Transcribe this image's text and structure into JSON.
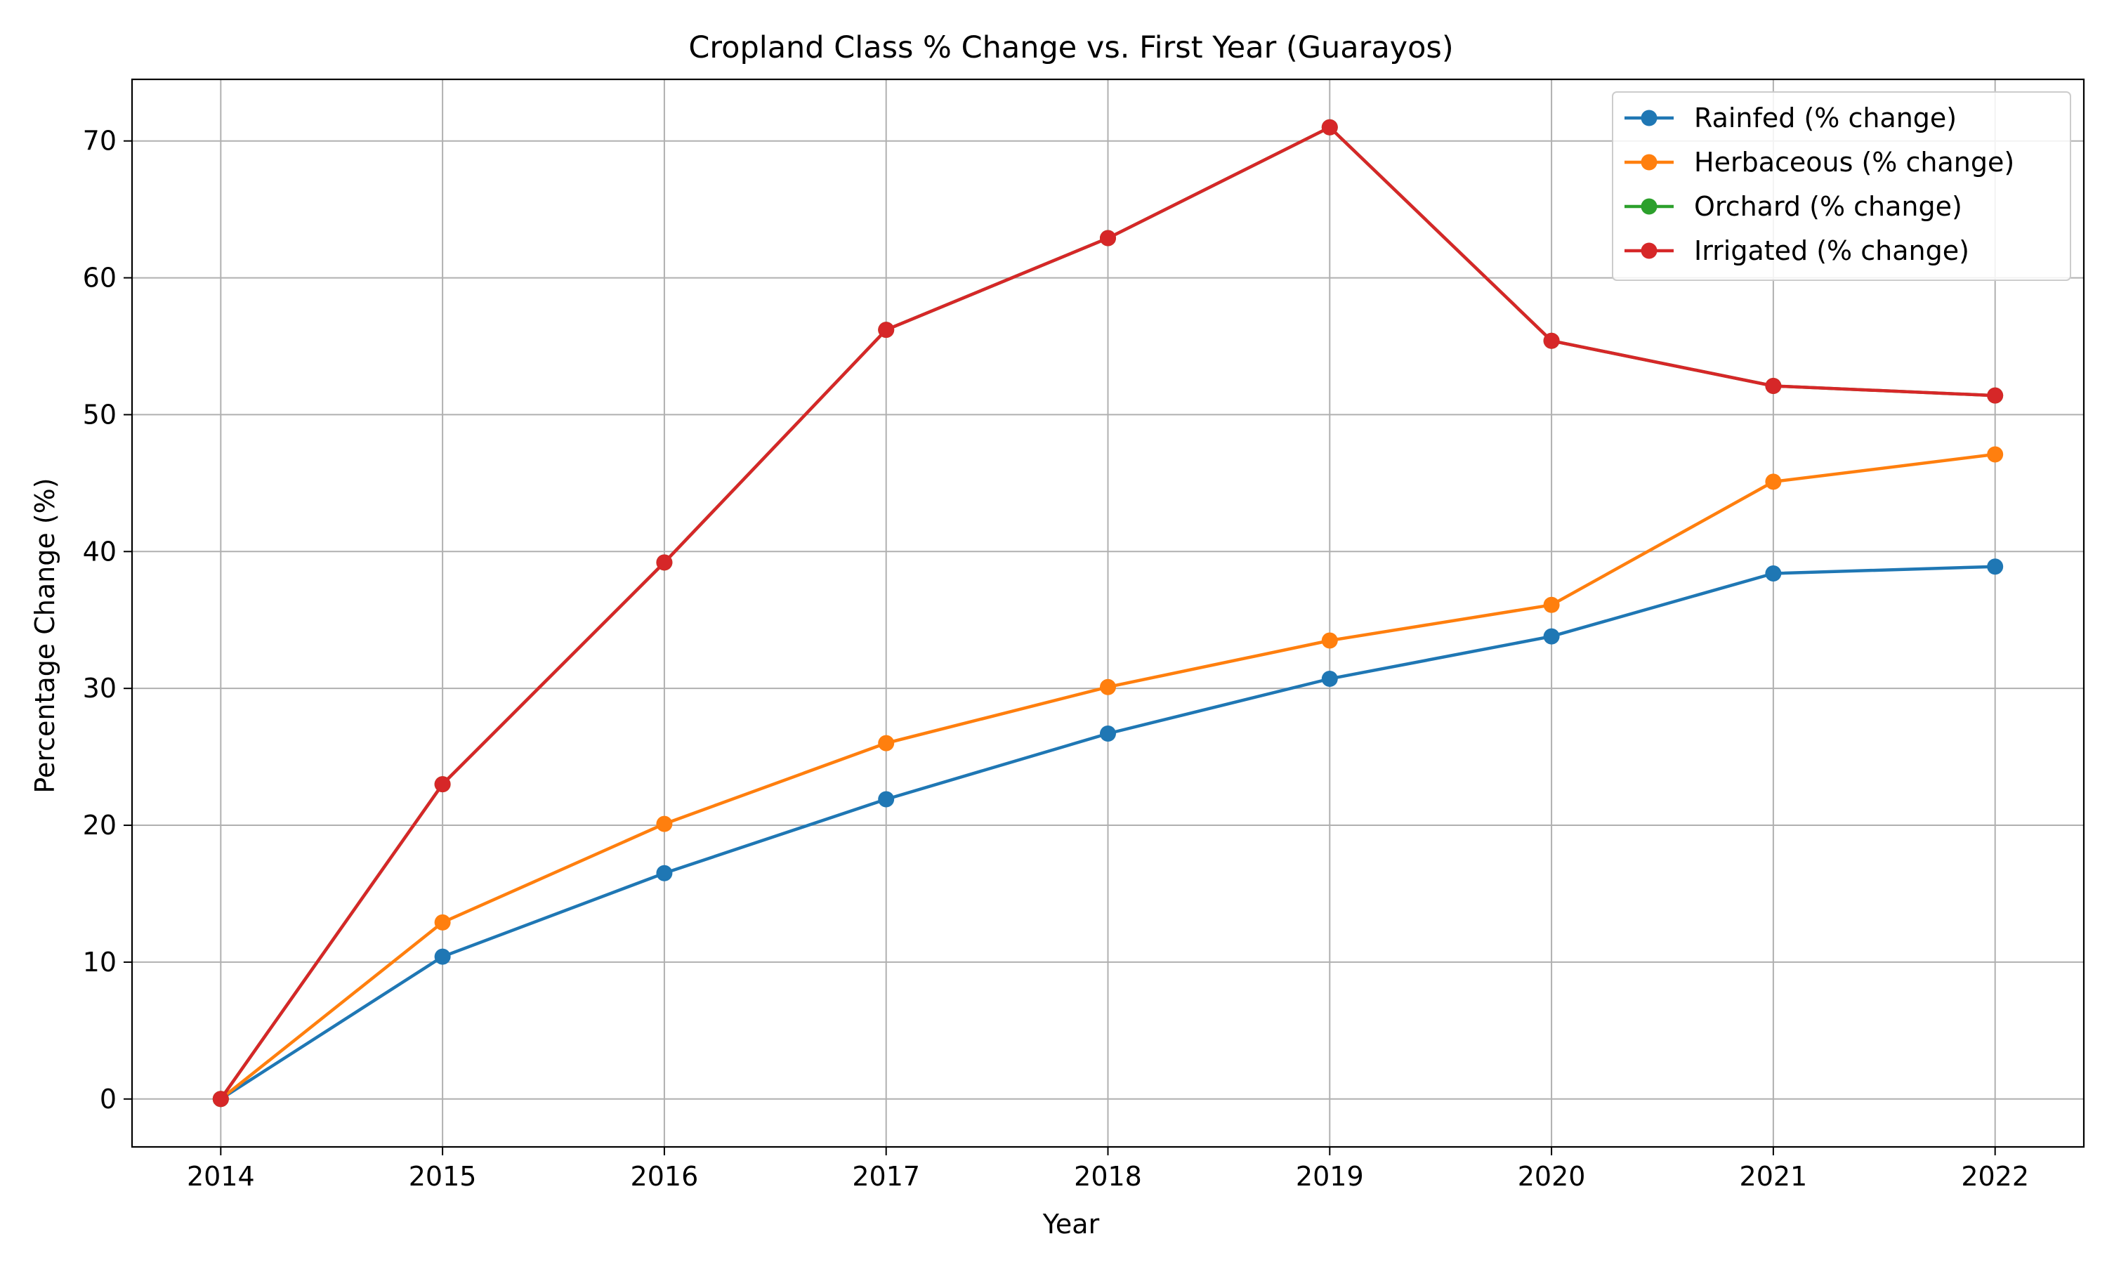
{
  "chart_data": {
    "type": "line",
    "title": "Cropland Class % Change vs. First Year (Guarayos)",
    "xlabel": "Year",
    "ylabel": "Percentage Change (%)",
    "x": [
      2014,
      2015,
      2016,
      2017,
      2018,
      2019,
      2020,
      2021,
      2022
    ],
    "xlim": [
      2013.6,
      2022.4
    ],
    "ylim": [
      -3.5,
      74.5
    ],
    "yticks": [
      0,
      10,
      20,
      30,
      40,
      50,
      60,
      70
    ],
    "grid": true,
    "legend_position": "top-right",
    "series": [
      {
        "name": "Rainfed (% change)",
        "color": "#1f77b4",
        "values": [
          0,
          10.4,
          16.5,
          21.9,
          26.7,
          30.7,
          33.8,
          38.4,
          38.9
        ]
      },
      {
        "name": "Herbaceous (% change)",
        "color": "#ff7f0e",
        "values": [
          0,
          12.9,
          20.1,
          26.0,
          30.1,
          33.5,
          36.1,
          45.1,
          47.1
        ]
      },
      {
        "name": "Orchard (% change)",
        "color": "#2ca02c",
        "values": [
          0,
          23.0,
          39.2,
          56.2,
          62.9,
          71.0,
          55.4,
          52.1,
          51.4
        ]
      },
      {
        "name": "Irrigated (% change)",
        "color": "#d62728",
        "values": [
          0,
          23.0,
          39.2,
          56.2,
          62.9,
          71.0,
          55.4,
          52.1,
          51.4
        ]
      }
    ]
  }
}
